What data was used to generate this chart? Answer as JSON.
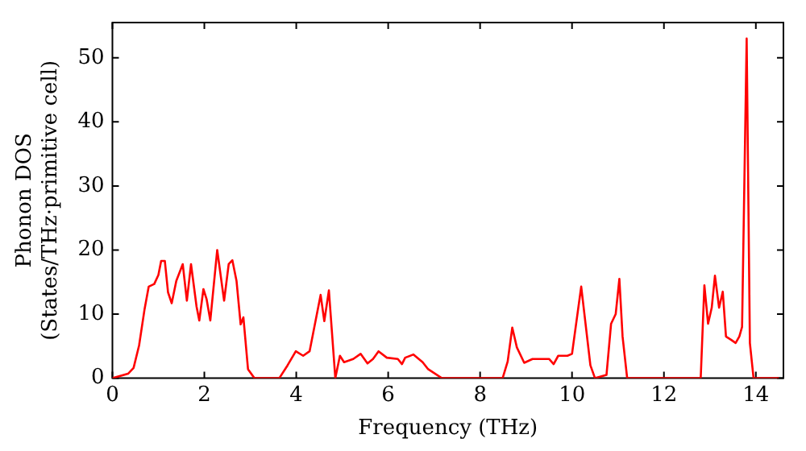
{
  "chart_data": {
    "type": "line",
    "xlabel": "Frequency (THz)",
    "ylabel": "Phonon DOS\n(States/THz·primitive cell)",
    "xlim": [
      0,
      14.6
    ],
    "ylim": [
      0,
      55.5
    ],
    "xticks": [
      0,
      2,
      4,
      6,
      8,
      10,
      12,
      14
    ],
    "yticks": [
      0,
      10,
      20,
      30,
      40,
      50
    ],
    "grid": false,
    "legend": false,
    "marker": "none",
    "line_style": "solid",
    "series": [
      {
        "color": "#ff0000",
        "x": [
          0,
          0.34,
          0.46,
          0.58,
          0.7,
          0.79,
          0.91,
          1.0,
          1.06,
          1.14,
          1.21,
          1.29,
          1.39,
          1.53,
          1.62,
          1.71,
          1.83,
          1.89,
          1.98,
          2.05,
          2.13,
          2.28,
          2.43,
          2.53,
          2.61,
          2.7,
          2.79,
          2.85,
          2.95,
          3.09,
          3.63,
          3.81,
          3.99,
          4.15,
          4.29,
          4.53,
          4.61,
          4.71,
          4.85,
          4.95,
          5.04,
          5.24,
          5.4,
          5.55,
          5.67,
          5.79,
          5.97,
          6.21,
          6.3,
          6.37,
          6.55,
          6.75,
          6.87,
          7.17,
          8.49,
          8.6,
          8.7,
          8.8,
          8.96,
          9.14,
          9.5,
          9.6,
          9.7,
          9.9,
          10.0,
          10.2,
          10.4,
          10.5,
          10.75,
          10.85,
          10.95,
          11.03,
          11.1,
          11.2,
          12.8,
          12.88,
          12.96,
          13.04,
          13.11,
          13.2,
          13.28,
          13.35,
          13.46,
          13.56,
          13.64,
          13.7,
          13.8,
          13.87,
          13.95,
          14.5
        ],
        "values": [
          0,
          0.7,
          1.6,
          5.1,
          10.8,
          14.3,
          14.7,
          16.1,
          18.3,
          18.3,
          13.4,
          11.7,
          15.2,
          17.8,
          12.1,
          17.8,
          11.2,
          9,
          13.9,
          12.3,
          9,
          20,
          12.1,
          17.8,
          18.4,
          15.2,
          8.4,
          9.5,
          1.4,
          0,
          0,
          2,
          4.2,
          3.5,
          4.2,
          13,
          8.9,
          13.7,
          0,
          3.5,
          2.5,
          3,
          3.8,
          2.3,
          3,
          4.2,
          3.2,
          3,
          2.2,
          3.2,
          3.7,
          2.5,
          1.4,
          0,
          0,
          2.6,
          7.9,
          4.8,
          2.4,
          3,
          3,
          2.2,
          3.5,
          3.5,
          3.8,
          14.3,
          2,
          0,
          0.5,
          8.5,
          10,
          15.5,
          6.5,
          0,
          0,
          14.5,
          8.5,
          11,
          16,
          11,
          13.5,
          6.5,
          6,
          5.5,
          6.5,
          8,
          53,
          5.5,
          0,
          0
        ]
      }
    ]
  }
}
